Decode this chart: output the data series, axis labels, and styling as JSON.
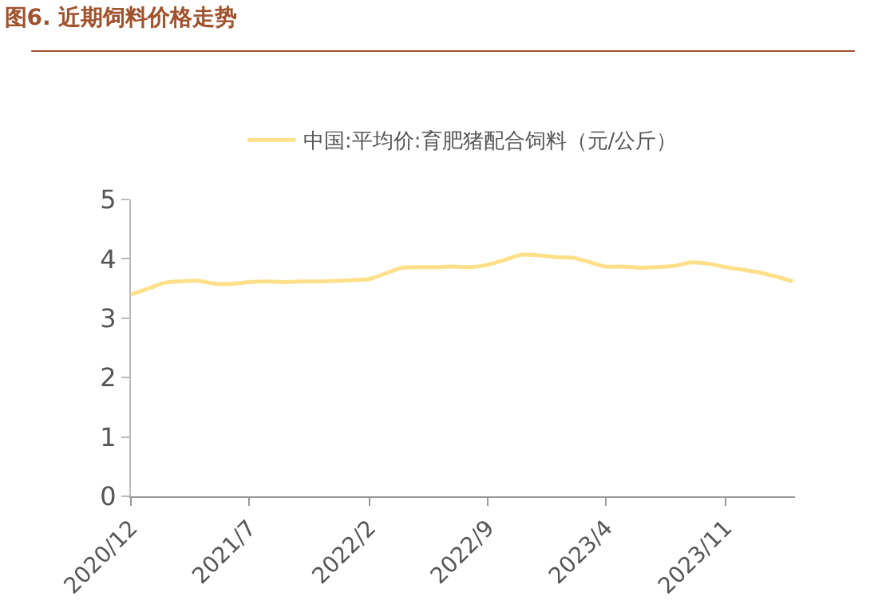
{
  "chart_data": {
    "type": "line",
    "title": "图6. 近期饲料价格走势",
    "x": [
      "2020-12",
      "2021-01",
      "2021-02",
      "2021-03",
      "2021-04",
      "2021-05",
      "2021-06",
      "2021-07",
      "2021-08",
      "2021-09",
      "2021-10",
      "2021-11",
      "2021-12",
      "2022-01",
      "2022-02",
      "2022-03",
      "2022-04",
      "2022-05",
      "2022-06",
      "2022-07",
      "2022-08",
      "2022-09",
      "2022-10",
      "2022-11",
      "2022-12",
      "2023-01",
      "2023-02",
      "2023-03",
      "2023-04",
      "2023-05",
      "2023-06",
      "2023-07",
      "2023-08",
      "2023-09",
      "2023-10",
      "2023-11",
      "2023-12",
      "2024-01",
      "2024-02",
      "2024-03"
    ],
    "series": [
      {
        "name": "中国:平均价:育肥猪配合饲料（元/公斤）",
        "color": "#ffe08a",
        "values": [
          3.4,
          3.5,
          3.6,
          3.62,
          3.63,
          3.58,
          3.58,
          3.61,
          3.62,
          3.61,
          3.62,
          3.62,
          3.63,
          3.64,
          3.66,
          3.75,
          3.85,
          3.86,
          3.86,
          3.87,
          3.86,
          3.9,
          3.98,
          4.07,
          4.06,
          4.03,
          4.02,
          3.95,
          3.87,
          3.87,
          3.85,
          3.86,
          3.88,
          3.94,
          3.92,
          3.86,
          3.82,
          3.77,
          3.7,
          3.62
        ]
      }
    ],
    "xlim": [
      "2020-12-01",
      "2024-03-05"
    ],
    "xticks": [
      {
        "value": "2020-12",
        "label": "2020/12"
      },
      {
        "value": "2021-07",
        "label": "2021/7"
      },
      {
        "value": "2022-02",
        "label": "2022/2"
      },
      {
        "value": "2022-09",
        "label": "2022/9"
      },
      {
        "value": "2023-04",
        "label": "2023/4"
      },
      {
        "value": "2023-11",
        "label": "2023/11"
      }
    ],
    "ylim": [
      0,
      5
    ],
    "yticks": [
      0,
      1,
      2,
      3,
      4,
      5
    ],
    "grid": false,
    "legend": "top",
    "marker": "none",
    "line_style": "solid"
  }
}
